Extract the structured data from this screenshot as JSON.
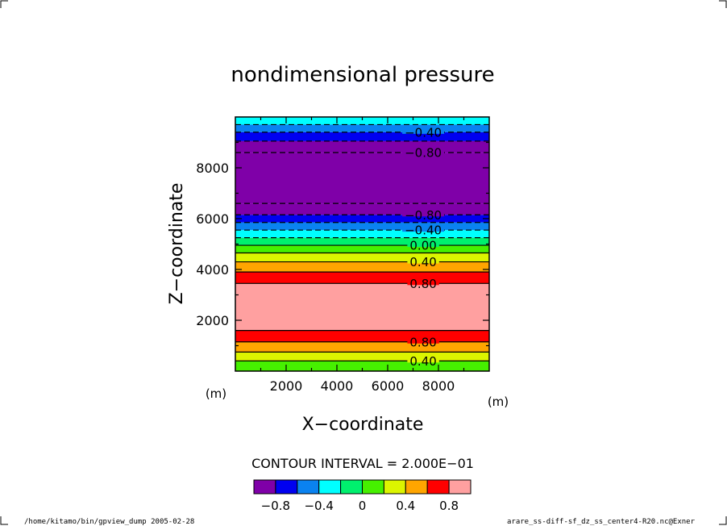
{
  "chart_data": {
    "type": "heatmap",
    "title": "nondimensional pressure",
    "xlabel": "X−coordinate",
    "ylabel": "Z−coordinate",
    "x_unit": "(m)",
    "y_unit": "(m)",
    "xlim": [
      0,
      10000
    ],
    "ylim": [
      0,
      10000
    ],
    "xticks": [
      2000,
      4000,
      6000,
      8000
    ],
    "yticks": [
      2000,
      4000,
      6000,
      8000
    ],
    "xtick_labels": [
      "2000",
      "4000",
      "6000",
      "8000"
    ],
    "ytick_labels": [
      "2000",
      "4000",
      "6000",
      "8000"
    ],
    "grid": false,
    "contour_interval_text": "CONTOUR INTERVAL = 2.000E−01",
    "bands": [
      {
        "z0": 0,
        "z1": 400,
        "level": 0.1
      },
      {
        "z0": 400,
        "z1": 750,
        "level": 0.3
      },
      {
        "z0": 750,
        "z1": 1150,
        "level": 0.5
      },
      {
        "z0": 1150,
        "z1": 1600,
        "level": 0.7
      },
      {
        "z0": 1600,
        "z1": 3450,
        "level": 0.9
      },
      {
        "z0": 3450,
        "z1": 3900,
        "level": 0.7
      },
      {
        "z0": 3900,
        "z1": 4300,
        "level": 0.5
      },
      {
        "z0": 4300,
        "z1": 4650,
        "level": 0.3
      },
      {
        "z0": 4650,
        "z1": 4950,
        "level": 0.1
      },
      {
        "z0": 4950,
        "z1": 5250,
        "level": -0.1
      },
      {
        "z0": 5250,
        "z1": 5550,
        "level": -0.3
      },
      {
        "z0": 5550,
        "z1": 5850,
        "level": -0.5
      },
      {
        "z0": 5850,
        "z1": 6150,
        "level": -0.7
      },
      {
        "z0": 6150,
        "z1": 6600,
        "level": -0.9
      },
      {
        "z0": 6600,
        "z1": 8600,
        "level": -1.1
      },
      {
        "z0": 8600,
        "z1": 9050,
        "level": -0.9
      },
      {
        "z0": 9050,
        "z1": 9400,
        "level": -0.7
      },
      {
        "z0": 9400,
        "z1": 9700,
        "level": -0.5
      },
      {
        "z0": 9700,
        "z1": 10000,
        "level": -0.3
      }
    ],
    "contour_lines": [
      {
        "z": 400,
        "dashed": false
      },
      {
        "z": 750,
        "dashed": false
      },
      {
        "z": 1150,
        "dashed": false
      },
      {
        "z": 1600,
        "dashed": false
      },
      {
        "z": 3450,
        "dashed": false
      },
      {
        "z": 3900,
        "dashed": false
      },
      {
        "z": 4300,
        "dashed": false
      },
      {
        "z": 4650,
        "dashed": false
      },
      {
        "z": 4950,
        "dashed": false
      },
      {
        "z": 5250,
        "dashed": true
      },
      {
        "z": 5550,
        "dashed": true
      },
      {
        "z": 5850,
        "dashed": true
      },
      {
        "z": 6150,
        "dashed": true
      },
      {
        "z": 6600,
        "dashed": true
      },
      {
        "z": 8600,
        "dashed": true
      },
      {
        "z": 9050,
        "dashed": true
      },
      {
        "z": 9400,
        "dashed": true
      },
      {
        "z": 9700,
        "dashed": true
      }
    ],
    "contour_labels": [
      {
        "text": "0.40",
        "z": 400
      },
      {
        "text": "0.80",
        "z": 1150
      },
      {
        "text": "0.80",
        "z": 3450
      },
      {
        "text": "0.40",
        "z": 4300
      },
      {
        "text": "0.00",
        "z": 4950
      },
      {
        "text": "−0.40",
        "z": 5550
      },
      {
        "text": "−0.80",
        "z": 6150
      },
      {
        "text": "−0.80",
        "z": 8600
      },
      {
        "text": "−0.40",
        "z": 9400
      }
    ],
    "colorbar": {
      "bounds": [
        -1.0,
        -0.8,
        -0.6,
        -0.4,
        -0.2,
        0.0,
        0.2,
        0.4,
        0.6,
        0.8,
        1.0
      ],
      "colors": [
        "#7f00a8",
        "#0000f0",
        "#0a82f0",
        "#00ffff",
        "#00f06e",
        "#46f000",
        "#dcf500",
        "#ffa500",
        "#ff0000",
        "#ffa0a0"
      ],
      "tick_values": [
        -0.8,
        -0.4,
        0.0,
        0.4,
        0.8
      ],
      "tick_labels": [
        "−0.8",
        "−0.4",
        "0",
        "0.4",
        "0.8"
      ]
    }
  },
  "footer": {
    "left": "/home/kitamo/bin/gpview_dump  2005-02-28",
    "right": "arare_ss-diff-sf_dz_ss_center4-R20.nc@Exner"
  }
}
